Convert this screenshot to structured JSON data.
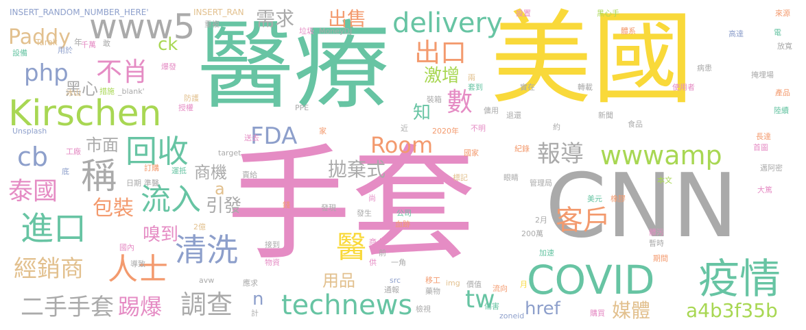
{
  "colors": {
    "gold": "#f9d93a",
    "green": "#67c4a3",
    "pink": "#e58cc4",
    "gray": "#aaaaaa",
    "orange": "#f39a6e",
    "lime": "#a8d753",
    "blue": "#8d9fcb",
    "tan": "#e2c08e"
  },
  "words": [
    {
      "text": "美國",
      "color": "gold"
    },
    {
      "text": "醫療",
      "color": "green"
    },
    {
      "text": "手套",
      "color": "pink"
    },
    {
      "text": "CNN",
      "color": "gray"
    },
    {
      "text": "COVID",
      "color": "green"
    },
    {
      "text": "疫情",
      "color": "green"
    },
    {
      "text": "Kirschen",
      "color": "lime"
    },
    {
      "text": "www5",
      "color": "gray"
    },
    {
      "text": "delivery",
      "color": "green"
    },
    {
      "text": "technews",
      "color": "green"
    },
    {
      "text": "wwwamp",
      "color": "lime"
    },
    {
      "text": "清洗",
      "color": "blue"
    },
    {
      "text": "進口",
      "color": "green"
    },
    {
      "text": "回收",
      "color": "green"
    },
    {
      "text": "流入",
      "color": "green"
    },
    {
      "text": "人士",
      "color": "orange"
    },
    {
      "text": "稱",
      "color": "gray"
    },
    {
      "text": "出口",
      "color": "orange"
    },
    {
      "text": "不肖",
      "color": "pink"
    },
    {
      "text": "Paddy",
      "color": "tan"
    },
    {
      "text": "php",
      "color": "blue"
    },
    {
      "text": "泰國",
      "color": "pink"
    },
    {
      "text": "經銷商",
      "color": "tan"
    },
    {
      "text": "二手手套",
      "color": "gray"
    },
    {
      "text": "踢爆",
      "color": "pink"
    },
    {
      "text": "調查",
      "color": "gray"
    },
    {
      "text": "客戶",
      "color": "orange"
    },
    {
      "text": "報導",
      "color": "gray"
    },
    {
      "text": "FDA",
      "color": "blue"
    },
    {
      "text": "Room",
      "color": "orange"
    },
    {
      "text": "數",
      "color": "pink"
    },
    {
      "text": "醫",
      "color": "gold"
    },
    {
      "text": "a4b3f35b",
      "color": "lime"
    },
    {
      "text": "cb",
      "color": "blue"
    },
    {
      "text": "tw",
      "color": "green"
    },
    {
      "text": "需求",
      "color": "gray"
    },
    {
      "text": "出售",
      "color": "orange"
    },
    {
      "text": "激增",
      "color": "lime"
    },
    {
      "text": "知",
      "color": "green"
    },
    {
      "text": "黑心",
      "color": "gray"
    },
    {
      "text": "市面",
      "color": "gray"
    },
    {
      "text": "商機",
      "color": "gray"
    },
    {
      "text": "拋棄式",
      "color": "gray"
    },
    {
      "text": "引發",
      "color": "gray"
    },
    {
      "text": "包裝",
      "color": "orange"
    },
    {
      "text": "嗅到",
      "color": "pink"
    },
    {
      "text": "媒體",
      "color": "tan"
    },
    {
      "text": "href",
      "color": "blue"
    },
    {
      "text": "用品",
      "color": "tan"
    },
    {
      "text": "ck",
      "color": "lime"
    },
    {
      "text": "a",
      "color": "tan"
    },
    {
      "text": "n",
      "color": "blue"
    },
    {
      "text": "INSERT_RANDOM_NUMBER_HERE'",
      "color": "blue"
    },
    {
      "text": "INSERT_RAN",
      "color": "tan"
    },
    {
      "text": "Tarek",
      "color": "tan"
    },
    {
      "text": "年",
      "color": "gray"
    },
    {
      "text": "設備",
      "color": "green"
    },
    {
      "text": "用於",
      "color": "blue"
    },
    {
      "text": "千萬",
      "color": "pink"
    },
    {
      "text": "敢",
      "color": "gray"
    },
    {
      "text": "冰山",
      "color": "tan"
    },
    {
      "text": "措施",
      "color": "lime"
    },
    {
      "text": "_blank'",
      "color": "gray"
    },
    {
      "text": "爆發",
      "color": "pink"
    },
    {
      "text": "防護",
      "color": "tan"
    },
    {
      "text": "授權",
      "color": "pink"
    },
    {
      "text": "Unsplash",
      "color": "blue"
    },
    {
      "text": "重複",
      "color": "gray"
    },
    {
      "text": "垃圾",
      "color": "pink"
    },
    {
      "text": "MoneyDJ",
      "color": "gray"
    },
    {
      "text": "PPE",
      "color": "gray"
    },
    {
      "text": "兩",
      "color": "tan"
    },
    {
      "text": "套到",
      "color": "green"
    },
    {
      "text": "裝箱",
      "color": "gray"
    },
    {
      "text": "設置",
      "color": "pink"
    },
    {
      "text": "黑心手",
      "color": "lime"
    },
    {
      "text": "體系",
      "color": "orange"
    },
    {
      "text": "高達",
      "color": "blue"
    },
    {
      "text": "病患",
      "color": "gray"
    },
    {
      "text": "實在",
      "color": "gray"
    },
    {
      "text": "轉載",
      "color": "gray"
    },
    {
      "text": "使用者",
      "color": "pink"
    },
    {
      "text": "傭用",
      "color": "gray"
    },
    {
      "text": "退還",
      "color": "gray"
    },
    {
      "text": "新聞",
      "color": "gray"
    },
    {
      "text": "約",
      "color": "gray"
    },
    {
      "text": "食品",
      "color": "gray"
    },
    {
      "text": "來源",
      "color": "orange"
    },
    {
      "text": "電",
      "color": "green"
    },
    {
      "text": "放寬",
      "color": "gray"
    },
    {
      "text": "掩埋場",
      "color": "gray"
    },
    {
      "text": "產品",
      "color": "orange"
    },
    {
      "text": "陸續",
      "color": "green"
    },
    {
      "text": "長達",
      "color": "orange"
    },
    {
      "text": "首圖",
      "color": "pink"
    },
    {
      "text": "邁阿密",
      "color": "gray"
    },
    {
      "text": "大篤",
      "color": "pink"
    },
    {
      "text": "本文",
      "color": "lime"
    },
    {
      "text": "美元",
      "color": "green"
    },
    {
      "text": "橡膠",
      "color": "orange"
    },
    {
      "text": "管理局",
      "color": "gray"
    },
    {
      "text": "眼睛",
      "color": "gray"
    },
    {
      "text": "標記",
      "color": "tan"
    },
    {
      "text": "國家",
      "color": "orange"
    },
    {
      "text": "紀錄",
      "color": "orange"
    },
    {
      "text": "2020年",
      "color": "orange"
    },
    {
      "text": "不明",
      "color": "pink"
    },
    {
      "text": "家",
      "color": "orange"
    },
    {
      "text": "近",
      "color": "gray"
    },
    {
      "text": "送去",
      "color": "pink"
    },
    {
      "text": "target",
      "color": "gray"
    },
    {
      "text": "工廠",
      "color": "pink"
    },
    {
      "text": "底",
      "color": "blue"
    },
    {
      "text": "訂購",
      "color": "orange"
    },
    {
      "text": "運抵",
      "color": "green"
    },
    {
      "text": "日期",
      "color": "gray"
    },
    {
      "text": "準醫",
      "color": "gray"
    },
    {
      "text": "賣給",
      "color": "gray"
    },
    {
      "text": "指出",
      "color": "pink"
    },
    {
      "text": "錢",
      "color": "orange"
    },
    {
      "text": "尚",
      "color": "pink"
    },
    {
      "text": "發現",
      "color": "gray"
    },
    {
      "text": "發生",
      "color": "gray"
    },
    {
      "text": "公司",
      "color": "green"
    },
    {
      "text": "血跡",
      "color": "orange"
    },
    {
      "text": "2億",
      "color": "tan"
    },
    {
      "text": "國內",
      "color": "pink"
    },
    {
      "text": "導致",
      "color": "gray"
    },
    {
      "text": "接到",
      "color": "gray"
    },
    {
      "text": "物資",
      "color": "pink"
    },
    {
      "text": "商人",
      "color": "pink"
    },
    {
      "text": "前",
      "color": "gray"
    },
    {
      "text": "供",
      "color": "pink"
    },
    {
      "text": "一角",
      "color": "gray"
    },
    {
      "text": "2月",
      "color": "gray"
    },
    {
      "text": "200萬",
      "color": "gray"
    },
    {
      "text": "髒污",
      "color": "pink"
    },
    {
      "text": "暫時",
      "color": "gray"
    },
    {
      "text": "加速",
      "color": "green"
    },
    {
      "text": "期間",
      "color": "orange"
    },
    {
      "text": "avw",
      "color": "gray"
    },
    {
      "text": "應求",
      "color": "gray"
    },
    {
      "text": "src",
      "color": "blue"
    },
    {
      "text": "移工",
      "color": "orange"
    },
    {
      "text": "img",
      "color": "tan"
    },
    {
      "text": "價值",
      "color": "gray"
    },
    {
      "text": "流向",
      "color": "orange"
    },
    {
      "text": "月",
      "color": "gold"
    },
    {
      "text": "通報",
      "color": "gray"
    },
    {
      "text": "藥物",
      "color": "gray"
    },
    {
      "text": "傷害",
      "color": "green"
    },
    {
      "text": "zoneid",
      "color": "blue"
    },
    {
      "text": "計",
      "color": "gray"
    },
    {
      "text": "檢視",
      "color": "gray"
    },
    {
      "text": "購買",
      "color": "pink"
    }
  ]
}
